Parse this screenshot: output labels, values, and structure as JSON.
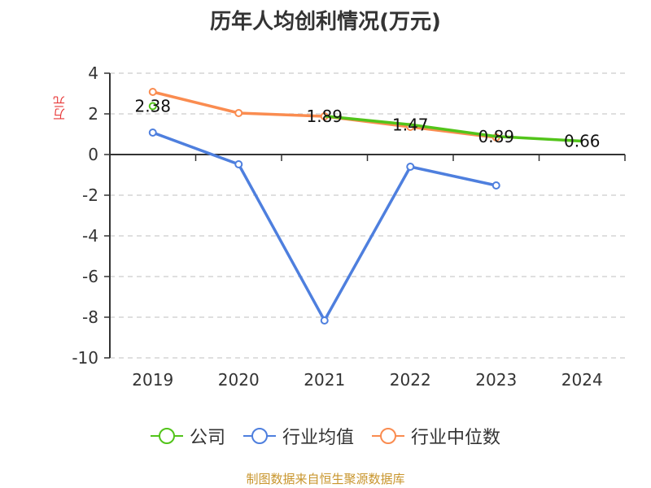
{
  "title": "历年人均创利情况(万元)",
  "y_unit": "万元",
  "source": "制图数据来自恒生聚源数据库",
  "colors": {
    "company": "#52c41a",
    "industry_mean": "#4e7fde",
    "industry_median": "#fa8c50",
    "axis": "#333333",
    "grid": "#cccccc",
    "source": "#c8952c",
    "unit": "#e83a3a"
  },
  "legend": [
    {
      "label": "公司",
      "color": "#52c41a"
    },
    {
      "label": "行业均值",
      "color": "#4e7fde"
    },
    {
      "label": "行业中位数",
      "color": "#fa8c50"
    }
  ],
  "chart_data": {
    "type": "line",
    "title": "历年人均创利情况(万元)",
    "xlabel": "",
    "ylabel": "万元",
    "categories": [
      "2019",
      "2020",
      "2021",
      "2022",
      "2023",
      "2024"
    ],
    "ylim": [
      -10,
      4
    ],
    "yticks": [
      4,
      2,
      0,
      -2,
      -4,
      -6,
      -8,
      -10
    ],
    "grid": true,
    "legend_position": "bottom",
    "series": [
      {
        "name": "公司",
        "values": [
          2.38,
          null,
          1.89,
          1.47,
          0.89,
          0.66
        ],
        "labels": [
          "2.38",
          "",
          "1.89",
          "1.47",
          "0.89",
          "0.66"
        ]
      },
      {
        "name": "行业均值",
        "values": [
          1.08,
          -0.48,
          -8.16,
          -0.6,
          -1.52,
          null
        ]
      },
      {
        "name": "行业中位数",
        "values": [
          3.08,
          2.04,
          1.88,
          1.36,
          0.84,
          null
        ]
      }
    ]
  }
}
